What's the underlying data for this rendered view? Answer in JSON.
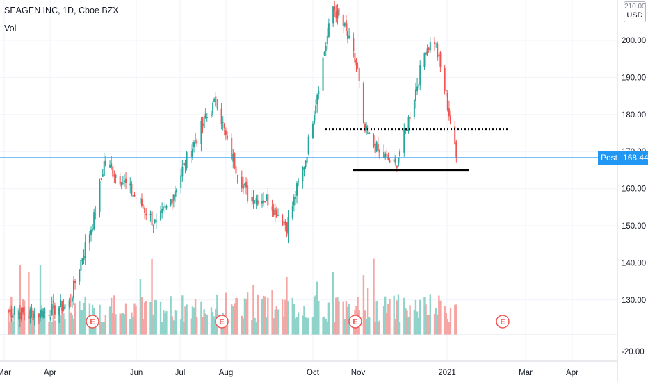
{
  "header": {
    "title": "SEAGEN INC, 1D, Cboe BZX",
    "volume_label": "Vol"
  },
  "price_axis": {
    "currency": "USD",
    "top_tick": "210.00",
    "ticks": [
      "200.00",
      "190.00",
      "180.00",
      "170.00",
      "160.00",
      "150.00",
      "140.00",
      "130.00",
      "-20.00"
    ]
  },
  "time_axis": {
    "labels": [
      "Mar",
      "Apr",
      "Jun",
      "Jul",
      "Aug",
      "Oct",
      "Nov",
      "2021",
      "Mar",
      "Apr"
    ]
  },
  "last_price": {
    "label": "Post",
    "value": "168.44"
  },
  "earnings_marker": "E",
  "colors": {
    "up": "#26a69a",
    "down": "#ef5350",
    "vol_up": "#8fd3ca",
    "vol_down": "#f5a5a3",
    "post": "#2196f3"
  },
  "chart_data": {
    "type": "candlestick",
    "series_name": "SEAGEN INC, 1D, Cboe BZX",
    "ylim": [
      122,
      211
    ],
    "date_range": [
      "2020-03",
      "2021-04"
    ],
    "earnings_months": [
      "Apr",
      "Jul",
      "Oct",
      "Feb"
    ],
    "trend_path": [
      [
        "2020-03-02",
        127
      ],
      [
        "2020-03-16",
        126
      ],
      [
        "2020-03-30",
        127
      ],
      [
        "2020-04-13",
        129
      ],
      [
        "2020-04-22",
        142
      ],
      [
        "2020-04-30",
        152
      ],
      [
        "2020-05-07",
        167
      ],
      [
        "2020-05-20",
        162
      ],
      [
        "2020-06-01",
        156
      ],
      [
        "2020-06-12",
        150
      ],
      [
        "2020-06-22",
        157
      ],
      [
        "2020-07-03",
        168
      ],
      [
        "2020-07-15",
        178
      ],
      [
        "2020-07-24",
        184
      ],
      [
        "2020-07-31",
        172
      ],
      [
        "2020-08-14",
        158
      ],
      [
        "2020-08-28",
        157
      ],
      [
        "2020-09-10",
        150
      ],
      [
        "2020-09-23",
        168
      ],
      [
        "2020-10-05",
        195
      ],
      [
        "2020-10-12",
        209
      ],
      [
        "2020-10-20",
        203
      ],
      [
        "2020-10-29",
        192
      ],
      [
        "2020-11-02",
        176
      ],
      [
        "2020-11-12",
        170
      ],
      [
        "2020-11-24",
        166
      ],
      [
        "2020-12-02",
        177
      ],
      [
        "2020-12-15",
        198
      ],
      [
        "2020-12-21",
        200
      ],
      [
        "2020-12-29",
        185
      ],
      [
        "2021-01-05",
        168
      ]
    ],
    "annotations": {
      "resistance_dotted": 176,
      "support_solid": 165,
      "last_price": 168.44
    }
  }
}
